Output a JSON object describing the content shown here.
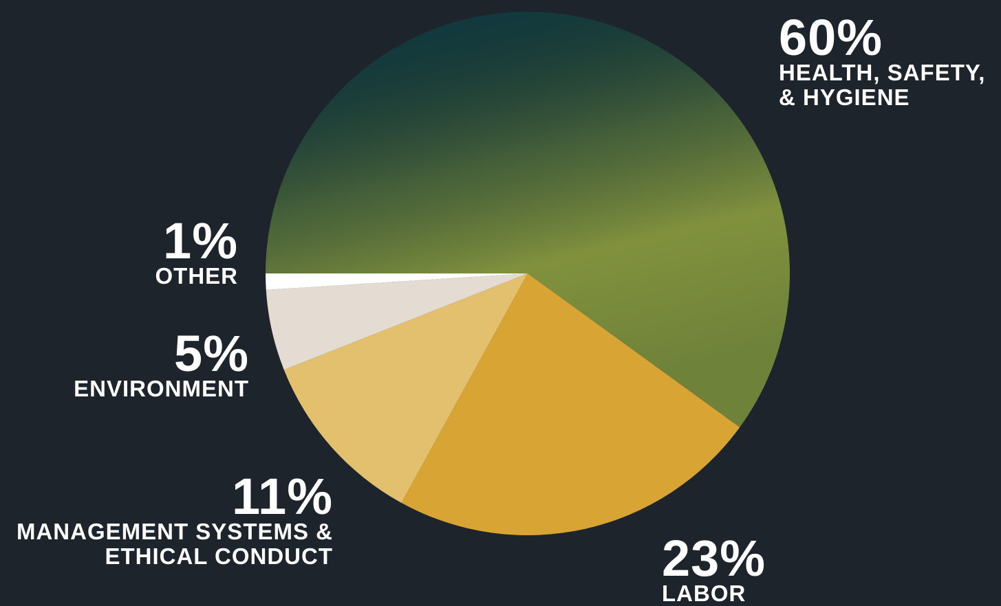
{
  "chart_data": {
    "type": "pie",
    "categories": [
      "HEALTH, SAFETY, & HYGIENE",
      "LABOR",
      "MANAGEMENT SYSTEMS & ETHICAL CONDUCT",
      "ENVIRONMENT",
      "OTHER"
    ],
    "values": [
      60,
      23,
      11,
      5,
      1
    ],
    "value_labels": [
      "60%",
      "23%",
      "11%",
      "5%",
      "1%"
    ],
    "colors": [
      "#0f3d47",
      "#d8a433",
      "#e3c06e",
      "#e4dcd2",
      "#ffffff"
    ]
  }
}
